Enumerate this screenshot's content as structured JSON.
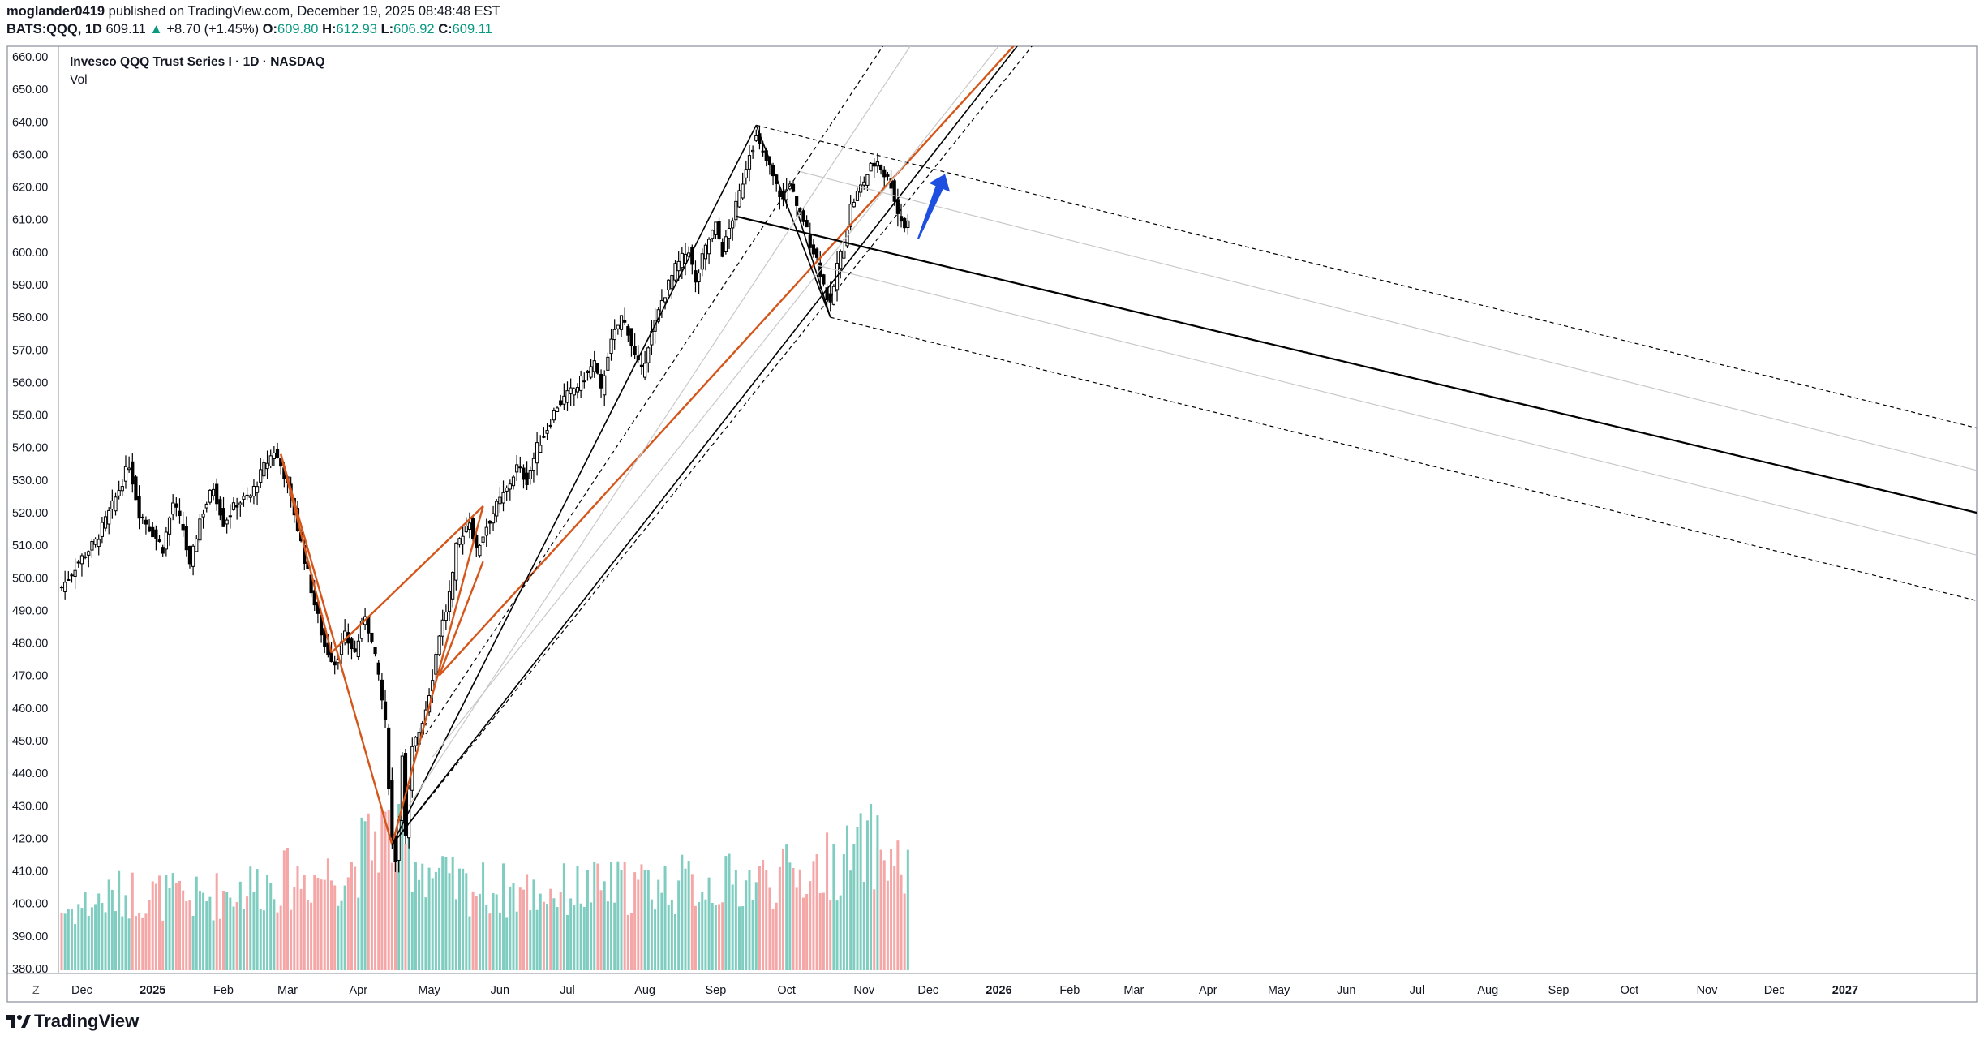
{
  "header": {
    "publisher": "moglander0419",
    "published_text": "published on TradingView.com, December 19, 2025 08:48:48 EST",
    "symbol": "BATS:QQQ, 1D",
    "last": "609.11",
    "change_arrow": "▲",
    "change": "+8.70 (+1.45%)",
    "o_label": "O:",
    "o": "609.80",
    "h_label": "H:",
    "h": "612.93",
    "l_label": "L:",
    "l": "606.92",
    "c_label": "C:",
    "c": "609.11"
  },
  "footer": {
    "brand": "TradingView"
  },
  "colors": {
    "up": "#089981",
    "down": "#f23645",
    "vol_up": "#7fcdc0",
    "vol_down": "#f5a6a6",
    "candle": "#000000",
    "orange": "#d4561a",
    "arrow": "#1e4fe0",
    "grid_line": "#c8c8c8"
  },
  "chart_data": {
    "type": "candlestick",
    "title": "Invesco QQQ Trust Series I · 1D · NASDAQ",
    "subtitle": "Vol",
    "xlabel": "",
    "ylabel": "",
    "ylim": [
      380,
      660
    ],
    "y_ticks": [
      "660.00",
      "650.00",
      "640.00",
      "630.00",
      "620.00",
      "610.00",
      "600.00",
      "590.00",
      "580.00",
      "570.00",
      "560.00",
      "550.00",
      "540.00",
      "530.00",
      "520.00",
      "510.00",
      "500.00",
      "490.00",
      "480.00",
      "470.00",
      "460.00",
      "450.00",
      "440.00",
      "430.00",
      "420.00",
      "410.00",
      "400.00",
      "390.00",
      "380.00"
    ],
    "x_corner_label": "Z",
    "x_ticks": [
      {
        "label": "Dec",
        "bold": false,
        "bar": 6
      },
      {
        "label": "2025",
        "bold": true,
        "bar": 27
      },
      {
        "label": "Feb",
        "bold": false,
        "bar": 48
      },
      {
        "label": "Mar",
        "bold": false,
        "bar": 67
      },
      {
        "label": "Apr",
        "bold": false,
        "bar": 88
      },
      {
        "label": "May",
        "bold": false,
        "bar": 109
      },
      {
        "label": "Jun",
        "bold": false,
        "bar": 130
      },
      {
        "label": "Jul",
        "bold": false,
        "bar": 150
      },
      {
        "label": "Aug",
        "bold": false,
        "bar": 173
      },
      {
        "label": "Sep",
        "bold": false,
        "bar": 194
      },
      {
        "label": "Oct",
        "bold": false,
        "bar": 215
      },
      {
        "label": "Nov",
        "bold": false,
        "bar": 238
      },
      {
        "label": "Dec",
        "bold": false,
        "bar": 257
      },
      {
        "label": "2026",
        "bold": true,
        "bar": 278
      },
      {
        "label": "Feb",
        "bold": false,
        "bar": 299
      },
      {
        "label": "Mar",
        "bold": false,
        "bar": 318
      },
      {
        "label": "Apr",
        "bold": false,
        "bar": 340
      },
      {
        "label": "May",
        "bold": false,
        "bar": 361
      },
      {
        "label": "Jun",
        "bold": false,
        "bar": 381
      },
      {
        "label": "Jul",
        "bold": false,
        "bar": 402
      },
      {
        "label": "Aug",
        "bold": false,
        "bar": 423
      },
      {
        "label": "Sep",
        "bold": false,
        "bar": 444
      },
      {
        "label": "Oct",
        "bold": false,
        "bar": 465
      },
      {
        "label": "Nov",
        "bold": false,
        "bar": 488
      },
      {
        "label": "Dec",
        "bold": false,
        "bar": 508
      },
      {
        "label": "2027",
        "bold": true,
        "bar": 529
      }
    ],
    "bars_visible": 568,
    "price_anchors": [
      [
        0,
        497
      ],
      [
        5,
        505
      ],
      [
        10,
        511
      ],
      [
        15,
        522
      ],
      [
        20,
        535
      ],
      [
        23,
        520
      ],
      [
        27,
        514
      ],
      [
        30,
        509
      ],
      [
        33,
        523
      ],
      [
        36,
        515
      ],
      [
        38,
        503
      ],
      [
        41,
        518
      ],
      [
        45,
        528
      ],
      [
        48,
        517
      ],
      [
        52,
        523
      ],
      [
        56,
        525
      ],
      [
        60,
        534
      ],
      [
        63,
        539
      ],
      [
        66,
        532
      ],
      [
        69,
        520
      ],
      [
        72,
        506
      ],
      [
        75,
        492
      ],
      [
        78,
        479
      ],
      [
        81,
        474
      ],
      [
        84,
        482
      ],
      [
        87,
        477
      ],
      [
        90,
        489
      ],
      [
        92,
        480
      ],
      [
        94,
        470
      ],
      [
        96,
        455
      ],
      [
        97,
        437
      ],
      [
        98,
        420
      ],
      [
        99,
        414
      ],
      [
        100,
        426
      ],
      [
        101,
        447
      ],
      [
        102,
        420
      ],
      [
        103,
        434
      ],
      [
        104,
        447
      ],
      [
        106,
        453
      ],
      [
        108,
        460
      ],
      [
        110,
        470
      ],
      [
        112,
        483
      ],
      [
        114,
        490
      ],
      [
        116,
        500
      ],
      [
        117,
        509
      ],
      [
        119,
        514
      ],
      [
        121,
        518
      ],
      [
        123,
        508
      ],
      [
        126,
        516
      ],
      [
        129,
        522
      ],
      [
        132,
        527
      ],
      [
        135,
        534
      ],
      [
        138,
        530
      ],
      [
        141,
        540
      ],
      [
        144,
        546
      ],
      [
        147,
        553
      ],
      [
        150,
        556
      ],
      [
        153,
        559
      ],
      [
        156,
        563
      ],
      [
        158,
        566
      ],
      [
        160,
        557
      ],
      [
        162,
        569
      ],
      [
        164,
        575
      ],
      [
        166,
        580
      ],
      [
        168,
        576
      ],
      [
        170,
        568
      ],
      [
        172,
        563
      ],
      [
        174,
        572
      ],
      [
        176,
        578
      ],
      [
        178,
        585
      ],
      [
        180,
        590
      ],
      [
        182,
        595
      ],
      [
        184,
        598
      ],
      [
        186,
        601
      ],
      [
        188,
        590
      ],
      [
        190,
        598
      ],
      [
        192,
        604
      ],
      [
        194,
        608
      ],
      [
        196,
        600
      ],
      [
        198,
        607
      ],
      [
        200,
        614
      ],
      [
        202,
        622
      ],
      [
        204,
        631
      ],
      [
        206,
        635
      ],
      [
        208,
        630
      ],
      [
        210,
        626
      ],
      [
        212,
        620
      ],
      [
        214,
        616
      ],
      [
        216,
        622
      ],
      [
        218,
        613
      ],
      [
        220,
        610
      ],
      [
        222,
        603
      ],
      [
        224,
        598
      ],
      [
        226,
        590
      ],
      [
        228,
        583
      ],
      [
        230,
        596
      ],
      [
        232,
        602
      ],
      [
        234,
        614
      ],
      [
        236,
        618
      ],
      [
        238,
        622
      ],
      [
        240,
        626
      ],
      [
        242,
        628
      ],
      [
        244,
        624
      ],
      [
        246,
        621
      ],
      [
        248,
        612
      ],
      [
        250,
        608
      ],
      [
        251,
        609
      ]
    ],
    "volume_level_anchors": [
      [
        0,
        0.42
      ],
      [
        20,
        0.55
      ],
      [
        40,
        0.5
      ],
      [
        60,
        0.62
      ],
      [
        85,
        0.7
      ],
      [
        95,
        1.0
      ],
      [
        100,
        0.9
      ],
      [
        115,
        0.6
      ],
      [
        140,
        0.55
      ],
      [
        170,
        0.6
      ],
      [
        200,
        0.62
      ],
      [
        220,
        0.68
      ],
      [
        235,
        0.8
      ],
      [
        240,
        0.9
      ],
      [
        251,
        0.7
      ]
    ],
    "drawings": [
      {
        "name": "orange-pattern-X-A",
        "type": "line",
        "color": "orange",
        "dash": false,
        "width": 2.4,
        "from": [
          65,
          538
        ],
        "to": [
          80,
          477
        ]
      },
      {
        "name": "orange-pattern-A-B",
        "type": "line",
        "color": "orange",
        "dash": false,
        "width": 2.4,
        "from": [
          80,
          477
        ],
        "to": [
          125,
          522
        ]
      },
      {
        "name": "orange-pattern-X-C",
        "type": "line",
        "color": "orange",
        "dash": false,
        "width": 2.4,
        "from": [
          65,
          538
        ],
        "to": [
          98,
          418
        ]
      },
      {
        "name": "orange-pattern-C-D",
        "type": "line",
        "color": "orange",
        "dash": false,
        "width": 2.4,
        "from": [
          98,
          418
        ],
        "to": [
          125,
          522
        ]
      },
      {
        "name": "orange-pattern-E-F",
        "type": "line",
        "color": "orange",
        "dash": false,
        "width": 2.4,
        "from": [
          112,
          470
        ],
        "to": [
          125,
          505
        ]
      },
      {
        "name": "orange-trend-line",
        "type": "line",
        "color": "orange",
        "dash": false,
        "width": 2.4,
        "from": [
          112,
          470
        ],
        "to": [
          290,
          672
        ]
      },
      {
        "name": "black-trend-line-upper",
        "type": "line",
        "color": "candle",
        "dash": false,
        "width": 1.6,
        "from": [
          98,
          418
        ],
        "to": [
          290,
          672
        ]
      },
      {
        "name": "black-pattern-top-leg",
        "type": "line",
        "color": "candle",
        "dash": false,
        "width": 1.6,
        "from": [
          98,
          418
        ],
        "to": [
          206,
          639
        ]
      },
      {
        "name": "black-pattern-down-leg",
        "type": "line",
        "color": "candle",
        "dash": false,
        "width": 1.6,
        "from": [
          206,
          639
        ],
        "to": [
          228,
          580
        ]
      },
      {
        "name": "black-pattern-up-leg",
        "type": "line",
        "color": "candle",
        "dash": false,
        "width": 1.6,
        "from": [
          228,
          580
        ],
        "to": [
          218,
          613
        ]
      },
      {
        "name": "pitchfork-median",
        "type": "line",
        "color": "candle",
        "dash": false,
        "width": 2.2,
        "from": [
          200,
          611
        ],
        "to": [
          568,
          520
        ]
      },
      {
        "name": "pitchfork-upper-dashed",
        "type": "line",
        "color": "candle",
        "dash": true,
        "width": 1.2,
        "from": [
          206,
          639
        ],
        "to": [
          568,
          546
        ]
      },
      {
        "name": "pitchfork-lower-dashed",
        "type": "line",
        "color": "candle",
        "dash": true,
        "width": 1.2,
        "from": [
          228,
          580
        ],
        "to": [
          568,
          493
        ]
      },
      {
        "name": "pitchfork-inner-upper",
        "type": "line",
        "color": "grid_line",
        "dash": false,
        "width": 1.2,
        "from": [
          218,
          625
        ],
        "to": [
          568,
          533
        ]
      },
      {
        "name": "pitchfork-inner-lower",
        "type": "line",
        "color": "grid_line",
        "dash": false,
        "width": 1.2,
        "from": [
          224,
          596
        ],
        "to": [
          568,
          507
        ]
      },
      {
        "name": "channel-upper-dashed",
        "type": "line",
        "color": "candle",
        "dash": true,
        "width": 1.2,
        "from": [
          108,
          452
        ],
        "to": [
          262,
          692
        ]
      },
      {
        "name": "channel-lower-dashed",
        "type": "line",
        "color": "candle",
        "dash": true,
        "width": 1.2,
        "from": [
          98,
          418
        ],
        "to": [
          310,
          692
        ]
      },
      {
        "name": "channel-upper-grey",
        "type": "line",
        "color": "grid_line",
        "dash": false,
        "width": 1.2,
        "from": [
          103,
          430
        ],
        "to": [
          270,
          692
        ]
      },
      {
        "name": "channel-lower-grey",
        "type": "line",
        "color": "grid_line",
        "dash": false,
        "width": 1.2,
        "from": [
          110,
          445
        ],
        "to": [
          300,
          692
        ]
      }
    ],
    "arrow": {
      "name": "projection-arrow",
      "from": [
        254,
        604
      ],
      "to": [
        262,
        624
      ],
      "color": "arrow"
    }
  }
}
